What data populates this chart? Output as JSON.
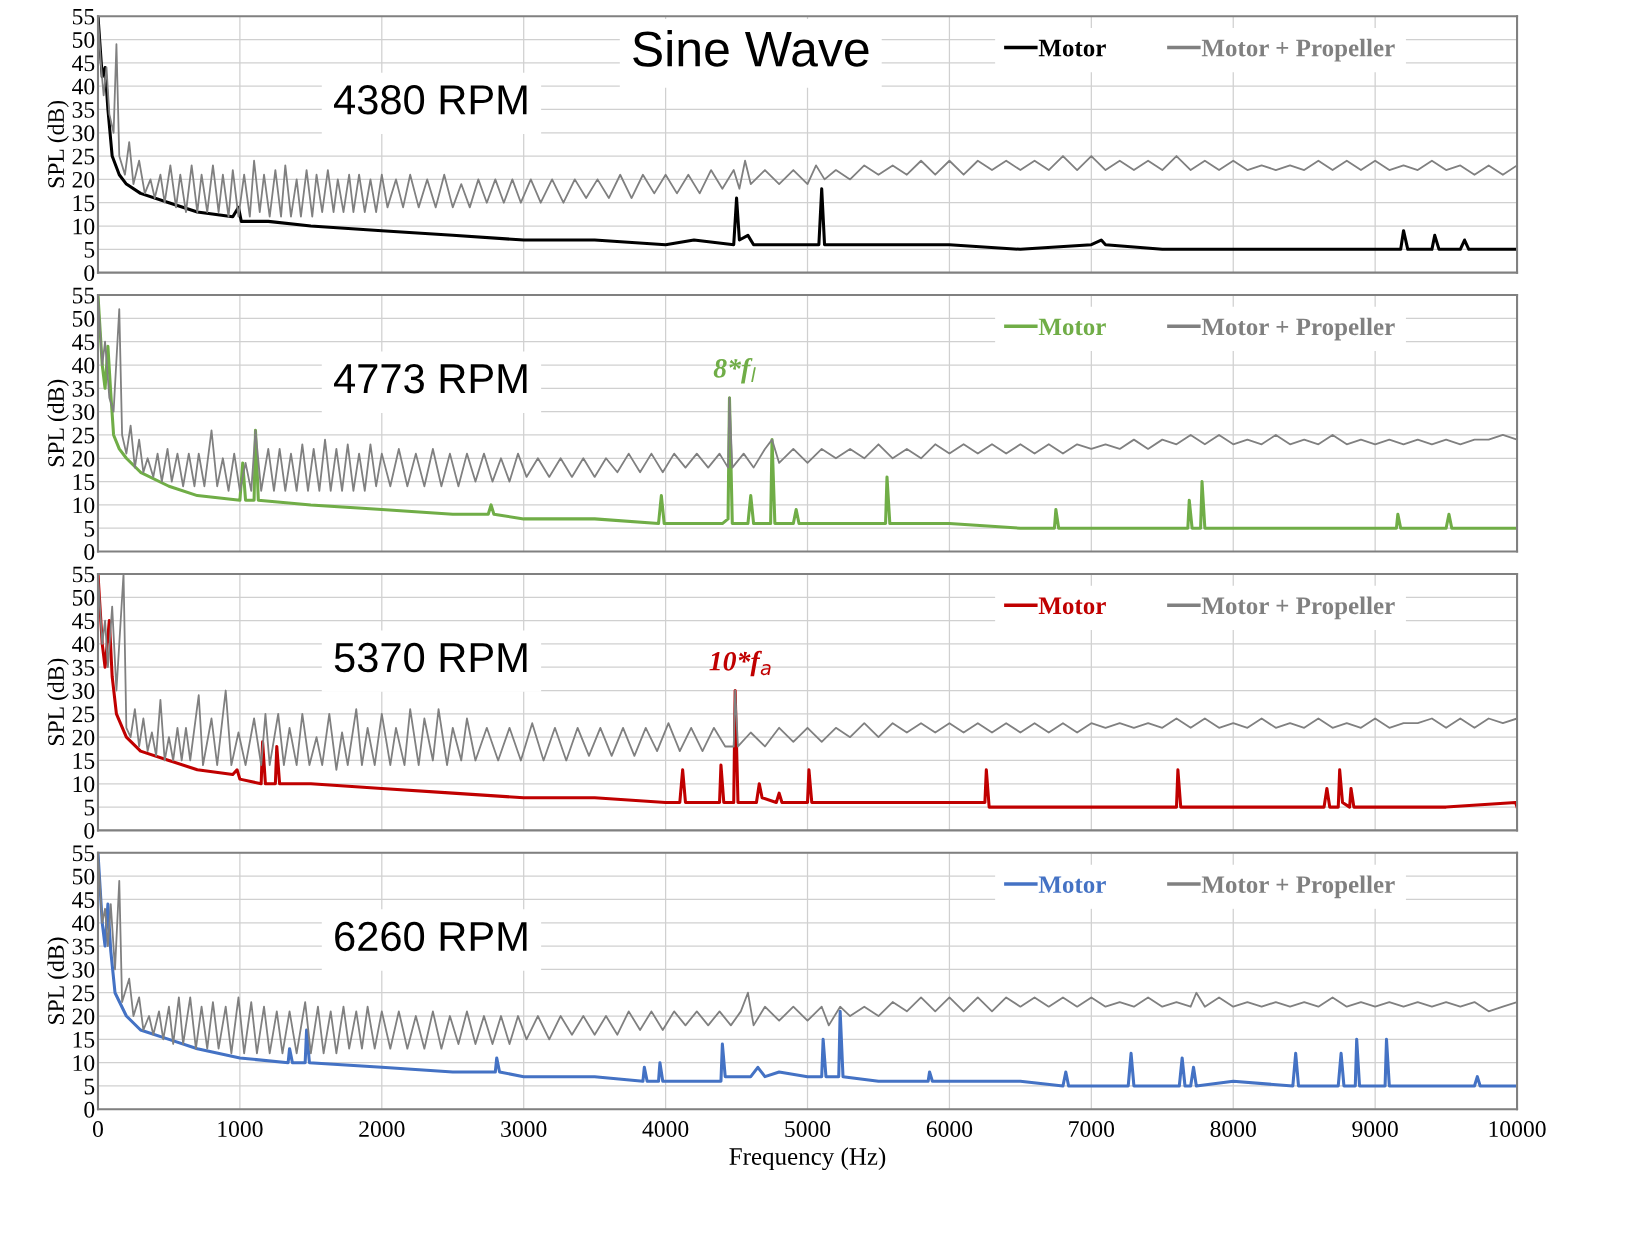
{
  "chart_data": [
    {
      "type": "line",
      "title": "Sine Wave",
      "ylabel": "SPL (dB)",
      "annotations": [
        "4380 RPM"
      ],
      "xlim": [
        0,
        10000
      ],
      "xticks": [
        0,
        1000,
        2000,
        3000,
        4000,
        5000,
        6000,
        7000,
        8000,
        9000,
        10000
      ],
      "ylim": [
        0,
        55
      ],
      "yticks": [
        0,
        5,
        10,
        15,
        20,
        25,
        30,
        35,
        40,
        45,
        50,
        55
      ],
      "tick_labels": "y",
      "grid": true,
      "legend": "top right",
      "series": [
        {
          "name": "Motor",
          "color": "#000000",
          "x": [
            0,
            30,
            50,
            70,
            100,
            150,
            200,
            300,
            500,
            700,
            950,
            990,
            1010,
            1200,
            1500,
            2000,
            2500,
            3000,
            3500,
            4000,
            4200,
            4480,
            4500,
            4520,
            4580,
            4620,
            5000,
            5080,
            5100,
            5120,
            5500,
            6000,
            6500,
            7000,
            7070,
            7100,
            7500,
            8000,
            8500,
            9000,
            9180,
            9200,
            9230,
            9400,
            9420,
            9450,
            9600,
            9630,
            9660,
            10000
          ],
          "values": [
            55,
            42,
            44,
            35,
            25,
            21,
            19,
            17,
            15,
            13,
            12,
            14,
            11,
            11,
            10,
            9,
            8,
            7,
            7,
            6,
            7,
            6,
            16,
            7,
            8,
            6,
            6,
            6,
            18,
            6,
            6,
            6,
            5,
            6,
            7,
            6,
            5,
            5,
            5,
            5,
            5,
            9,
            5,
            5,
            8,
            5,
            5,
            7,
            5,
            5
          ]
        },
        {
          "name": "Motor + Propeller",
          "color": "#808080",
          "x": [
            0,
            20,
            40,
            60,
            80,
            110,
            130,
            150,
            190,
            220,
            250,
            290,
            330,
            370,
            400,
            440,
            470,
            510,
            550,
            580,
            620,
            660,
            700,
            730,
            770,
            810,
            850,
            880,
            920,
            950,
            990,
            1030,
            1070,
            1100,
            1140,
            1170,
            1210,
            1250,
            1290,
            1320,
            1360,
            1400,
            1430,
            1470,
            1510,
            1540,
            1580,
            1620,
            1660,
            1690,
            1730,
            1770,
            1800,
            1840,
            1880,
            1920,
            1960,
            2000,
            2040,
            2100,
            2150,
            2200,
            2260,
            2320,
            2380,
            2440,
            2500,
            2560,
            2620,
            2680,
            2740,
            2800,
            2860,
            2920,
            2980,
            3050,
            3120,
            3200,
            3280,
            3360,
            3440,
            3520,
            3600,
            3680,
            3760,
            3840,
            3920,
            4000,
            4080,
            4160,
            4240,
            4320,
            4400,
            4480,
            4520,
            4560,
            4600,
            4700,
            4800,
            4900,
            5000,
            5060,
            5120,
            5200,
            5300,
            5400,
            5500,
            5600,
            5700,
            5800,
            5900,
            6000,
            6100,
            6200,
            6300,
            6400,
            6500,
            6600,
            6700,
            6800,
            6900,
            7000,
            7100,
            7200,
            7300,
            7400,
            7500,
            7600,
            7700,
            7800,
            7900,
            8000,
            8100,
            8200,
            8300,
            8400,
            8500,
            8600,
            8700,
            8800,
            8900,
            9000,
            9100,
            9200,
            9300,
            9400,
            9500,
            9600,
            9700,
            9800,
            9900,
            10000
          ],
          "values": [
            55,
            45,
            38,
            44,
            34,
            30,
            49,
            25,
            21,
            28,
            19,
            24,
            17,
            20,
            16,
            21,
            15,
            23,
            14,
            21,
            13,
            23,
            13,
            21,
            13,
            23,
            13,
            21,
            12,
            22,
            12,
            21,
            12,
            24,
            13,
            21,
            12,
            22,
            12,
            23,
            12,
            20,
            12,
            22,
            12,
            21,
            13,
            22,
            13,
            20,
            13,
            21,
            13,
            21,
            13,
            20,
            13,
            21,
            14,
            20,
            14,
            21,
            14,
            20,
            14,
            21,
            14,
            19,
            14,
            20,
            15,
            20,
            15,
            20,
            15,
            20,
            15,
            20,
            15,
            20,
            16,
            20,
            16,
            21,
            16,
            21,
            17,
            21,
            17,
            21,
            17,
            22,
            18,
            22,
            18,
            24,
            19,
            22,
            19,
            22,
            19,
            23,
            20,
            22,
            20,
            23,
            21,
            23,
            21,
            24,
            21,
            24,
            21,
            24,
            22,
            24,
            22,
            24,
            22,
            25,
            22,
            25,
            22,
            24,
            22,
            24,
            22,
            25,
            22,
            24,
            22,
            24,
            22,
            23,
            22,
            23,
            22,
            24,
            22,
            24,
            22,
            24,
            22,
            23,
            22,
            24,
            22,
            23,
            21,
            23,
            21,
            23
          ]
        }
      ]
    },
    {
      "type": "line",
      "ylabel": "SPL (dB)",
      "annotations": [
        "4773 RPM",
        {
          "text": "8*f$_{l}$",
          "x": 4450,
          "y": 33
        }
      ],
      "xlim": [
        0,
        10000
      ],
      "xticks": [
        0,
        1000,
        2000,
        3000,
        4000,
        5000,
        6000,
        7000,
        8000,
        9000,
        10000
      ],
      "ylim": [
        0,
        55
      ],
      "yticks": [
        0,
        5,
        10,
        15,
        20,
        25,
        30,
        35,
        40,
        45,
        50,
        55
      ],
      "tick_labels": "y",
      "grid": true,
      "legend": "top right",
      "series": [
        {
          "name": "Motor",
          "color": "#70ad47",
          "x": [
            0,
            30,
            50,
            70,
            90,
            110,
            150,
            200,
            300,
            500,
            700,
            1000,
            1020,
            1040,
            1100,
            1110,
            1130,
            1500,
            2000,
            2500,
            2750,
            2770,
            2790,
            3000,
            3500,
            3950,
            3970,
            3990,
            4400,
            4440,
            4450,
            4470,
            4580,
            4600,
            4620,
            4740,
            4750,
            4770,
            4900,
            4920,
            4940,
            5300,
            5550,
            5560,
            5580,
            6000,
            6500,
            6740,
            6750,
            6770,
            7000,
            7500,
            7680,
            7690,
            7710,
            7770,
            7780,
            7800,
            8000,
            8500,
            9000,
            9150,
            9160,
            9180,
            9500,
            9520,
            9540,
            10000
          ],
          "values": [
            55,
            40,
            35,
            44,
            34,
            25,
            22,
            20,
            17,
            14,
            12,
            11,
            19,
            11,
            11,
            26,
            11,
            10,
            9,
            8,
            8,
            10,
            8,
            7,
            7,
            6,
            12,
            6,
            6,
            7,
            33,
            6,
            6,
            12,
            6,
            6,
            24,
            6,
            6,
            9,
            6,
            6,
            6,
            16,
            6,
            6,
            5,
            5,
            9,
            5,
            5,
            5,
            5,
            11,
            5,
            5,
            15,
            5,
            5,
            5,
            5,
            5,
            8,
            5,
            5,
            8,
            5,
            5
          ]
        },
        {
          "name": "Motor + Propeller",
          "color": "#808080",
          "x": [
            0,
            30,
            50,
            80,
            110,
            150,
            170,
            200,
            230,
            260,
            290,
            320,
            350,
            390,
            420,
            450,
            490,
            520,
            560,
            600,
            640,
            680,
            710,
            750,
            800,
            840,
            880,
            920,
            960,
            1000,
            1040,
            1080,
            1110,
            1150,
            1200,
            1240,
            1280,
            1320,
            1360,
            1400,
            1440,
            1480,
            1520,
            1560,
            1600,
            1640,
            1680,
            1720,
            1760,
            1800,
            1840,
            1880,
            1920,
            1960,
            2000,
            2060,
            2120,
            2180,
            2240,
            2300,
            2360,
            2420,
            2480,
            2540,
            2600,
            2660,
            2720,
            2780,
            2840,
            2900,
            2960,
            3020,
            3100,
            3180,
            3260,
            3340,
            3420,
            3500,
            3580,
            3660,
            3740,
            3820,
            3900,
            3980,
            4060,
            4140,
            4220,
            4300,
            4380,
            4440,
            4450,
            4470,
            4550,
            4620,
            4700,
            4750,
            4800,
            4900,
            5000,
            5100,
            5200,
            5300,
            5400,
            5500,
            5600,
            5700,
            5800,
            5900,
            6000,
            6100,
            6200,
            6300,
            6400,
            6500,
            6600,
            6700,
            6800,
            6900,
            7000,
            7100,
            7200,
            7300,
            7400,
            7500,
            7600,
            7700,
            7800,
            7900,
            8000,
            8100,
            8200,
            8300,
            8400,
            8500,
            8600,
            8700,
            8800,
            8900,
            9000,
            9100,
            9200,
            9300,
            9400,
            9500,
            9600,
            9700,
            9800,
            9900,
            10000
          ],
          "values": [
            55,
            40,
            45,
            33,
            30,
            52,
            25,
            21,
            27,
            18,
            24,
            17,
            20,
            16,
            21,
            15,
            22,
            15,
            21,
            14,
            21,
            14,
            21,
            14,
            26,
            14,
            20,
            13,
            21,
            13,
            19,
            13,
            26,
            13,
            22,
            13,
            22,
            13,
            21,
            13,
            23,
            13,
            22,
            13,
            24,
            13,
            22,
            13,
            23,
            13,
            21,
            13,
            23,
            14,
            21,
            14,
            22,
            14,
            21,
            14,
            22,
            14,
            21,
            14,
            21,
            15,
            21,
            15,
            20,
            15,
            21,
            16,
            20,
            16,
            20,
            16,
            20,
            16,
            20,
            17,
            21,
            17,
            21,
            17,
            21,
            18,
            21,
            18,
            21,
            18,
            33,
            18,
            21,
            18,
            22,
            24,
            19,
            22,
            19,
            22,
            20,
            22,
            20,
            23,
            20,
            22,
            20,
            23,
            21,
            23,
            21,
            23,
            21,
            23,
            21,
            23,
            21,
            23,
            22,
            23,
            22,
            24,
            22,
            24,
            23,
            25,
            23,
            25,
            23,
            24,
            23,
            25,
            23,
            24,
            23,
            25,
            23,
            24,
            23,
            24,
            23,
            24,
            23,
            24,
            23,
            24,
            24,
            25,
            24
          ]
        }
      ]
    },
    {
      "type": "line",
      "ylabel": "SPL (dB)",
      "annotations": [
        "5370 RPM",
        {
          "text": "10*f$_{a}$",
          "x": 4490,
          "y": 30
        }
      ],
      "xlim": [
        0,
        10000
      ],
      "xticks": [
        0,
        1000,
        2000,
        3000,
        4000,
        5000,
        6000,
        7000,
        8000,
        9000,
        10000
      ],
      "ylim": [
        0,
        55
      ],
      "yticks": [
        0,
        5,
        10,
        15,
        20,
        25,
        30,
        35,
        40,
        45,
        50,
        55
      ],
      "tick_labels": "y",
      "grid": true,
      "legend": "top right",
      "series": [
        {
          "name": "Motor",
          "color": "#c00000",
          "x": [
            0,
            30,
            50,
            80,
            100,
            130,
            200,
            300,
            500,
            700,
            950,
            980,
            1000,
            1150,
            1160,
            1180,
            1250,
            1260,
            1280,
            1500,
            2000,
            2500,
            3000,
            3500,
            4000,
            4100,
            4120,
            4140,
            4380,
            4390,
            4410,
            4480,
            4490,
            4510,
            4640,
            4660,
            4680,
            4780,
            4800,
            4820,
            5000,
            5010,
            5030,
            5500,
            6000,
            6250,
            6260,
            6280,
            6500,
            7000,
            7500,
            7600,
            7610,
            7630,
            8000,
            8500,
            8640,
            8660,
            8680,
            8740,
            8750,
            8770,
            8820,
            8830,
            8850,
            9500,
            9990,
            10000
          ],
          "values": [
            55,
            40,
            35,
            45,
            33,
            25,
            20,
            17,
            15,
            13,
            12,
            13,
            11,
            10,
            19,
            10,
            10,
            18,
            10,
            10,
            9,
            8,
            7,
            7,
            6,
            6,
            13,
            6,
            6,
            14,
            6,
            6,
            30,
            6,
            6,
            10,
            7,
            6,
            8,
            6,
            6,
            13,
            6,
            6,
            6,
            6,
            13,
            5,
            5,
            5,
            5,
            5,
            13,
            5,
            5,
            5,
            5,
            9,
            5,
            5,
            13,
            6,
            5,
            9,
            5,
            5,
            6,
            5
          ]
        },
        {
          "name": "Motor + Propeller",
          "color": "#808080",
          "x": [
            0,
            30,
            50,
            70,
            100,
            130,
            180,
            200,
            230,
            260,
            290,
            320,
            350,
            380,
            410,
            440,
            470,
            500,
            530,
            560,
            590,
            620,
            650,
            710,
            740,
            800,
            840,
            900,
            940,
            990,
            1040,
            1100,
            1150,
            1180,
            1210,
            1270,
            1310,
            1350,
            1400,
            1440,
            1490,
            1540,
            1580,
            1630,
            1680,
            1720,
            1760,
            1820,
            1860,
            1900,
            1950,
            2000,
            2060,
            2100,
            2160,
            2200,
            2260,
            2300,
            2360,
            2400,
            2460,
            2500,
            2560,
            2600,
            2660,
            2740,
            2820,
            2900,
            2980,
            3060,
            3140,
            3220,
            3300,
            3380,
            3460,
            3540,
            3620,
            3700,
            3780,
            3860,
            3940,
            4020,
            4100,
            4180,
            4260,
            4340,
            4420,
            4480,
            4490,
            4510,
            4600,
            4700,
            4800,
            4900,
            5000,
            5100,
            5200,
            5300,
            5400,
            5500,
            5600,
            5700,
            5800,
            5900,
            6000,
            6100,
            6200,
            6300,
            6400,
            6500,
            6600,
            6700,
            6800,
            6900,
            7000,
            7100,
            7200,
            7300,
            7400,
            7500,
            7600,
            7700,
            7800,
            7900,
            8000,
            8100,
            8200,
            8300,
            8400,
            8500,
            8600,
            8700,
            8800,
            8900,
            9000,
            9100,
            9200,
            9300,
            9400,
            9500,
            9600,
            9700,
            9800,
            9900,
            10000
          ],
          "values": [
            55,
            40,
            45,
            35,
            48,
            30,
            55,
            22,
            20,
            26,
            18,
            24,
            17,
            21,
            16,
            28,
            15,
            20,
            15,
            22,
            15,
            22,
            15,
            29,
            14,
            24,
            14,
            30,
            14,
            21,
            14,
            24,
            14,
            25,
            14,
            25,
            14,
            22,
            14,
            25,
            14,
            20,
            14,
            25,
            13,
            21,
            14,
            26,
            14,
            22,
            14,
            25,
            14,
            22,
            14,
            26,
            14,
            24,
            15,
            26,
            14,
            22,
            15,
            24,
            15,
            22,
            15,
            22,
            15,
            23,
            15,
            22,
            15,
            22,
            16,
            22,
            16,
            22,
            16,
            22,
            17,
            23,
            17,
            22,
            17,
            22,
            18,
            18,
            30,
            18,
            21,
            18,
            22,
            19,
            22,
            19,
            22,
            20,
            23,
            20,
            23,
            21,
            23,
            21,
            23,
            21,
            23,
            21,
            23,
            21,
            23,
            21,
            23,
            21,
            23,
            22,
            23,
            22,
            23,
            22,
            24,
            22,
            24,
            22,
            23,
            22,
            24,
            22,
            23,
            22,
            24,
            22,
            23,
            22,
            24,
            22,
            23,
            23,
            24,
            22,
            24,
            22,
            24,
            23,
            24
          ]
        }
      ]
    },
    {
      "type": "line",
      "xlabel": "Frequency (Hz)",
      "ylabel": "SPL (dB)",
      "annotations": [
        "6260 RPM"
      ],
      "xlim": [
        0,
        10000
      ],
      "xticks": [
        0,
        1000,
        2000,
        3000,
        4000,
        5000,
        6000,
        7000,
        8000,
        9000,
        10000
      ],
      "ylim": [
        0,
        55
      ],
      "yticks": [
        0,
        5,
        10,
        15,
        20,
        25,
        30,
        35,
        40,
        45,
        50,
        55
      ],
      "grid": true,
      "legend": "top right",
      "series": [
        {
          "name": "Motor",
          "color": "#4472c4",
          "x": [
            0,
            30,
            50,
            70,
            90,
            120,
            200,
            300,
            500,
            700,
            1000,
            1340,
            1350,
            1370,
            1460,
            1470,
            1490,
            2000,
            2500,
            2800,
            2810,
            2830,
            3000,
            3500,
            3840,
            3850,
            3870,
            3950,
            3960,
            3980,
            4390,
            4400,
            4420,
            4600,
            4650,
            4700,
            4800,
            5000,
            5100,
            5110,
            5130,
            5220,
            5230,
            5250,
            5500,
            5850,
            5860,
            5880,
            6500,
            6800,
            6820,
            6840,
            7260,
            7280,
            7300,
            7620,
            7640,
            7660,
            7700,
            7720,
            7740,
            8000,
            8420,
            8440,
            8460,
            8740,
            8760,
            8780,
            8860,
            8870,
            8890,
            9070,
            9080,
            9100,
            9500,
            9700,
            9720,
            9740,
            10000
          ],
          "values": [
            55,
            40,
            35,
            44,
            34,
            25,
            20,
            17,
            15,
            13,
            11,
            10,
            13,
            10,
            10,
            17,
            10,
            9,
            8,
            8,
            11,
            8,
            7,
            7,
            6,
            9,
            6,
            6,
            10,
            6,
            6,
            14,
            7,
            7,
            9,
            7,
            8,
            7,
            7,
            15,
            7,
            7,
            21,
            7,
            6,
            6,
            8,
            6,
            6,
            5,
            8,
            5,
            5,
            12,
            5,
            5,
            11,
            5,
            5,
            9,
            5,
            6,
            5,
            12,
            5,
            5,
            12,
            5,
            5,
            15,
            5,
            5,
            15,
            5,
            5,
            5,
            7,
            5,
            5
          ]
        },
        {
          "name": "Motor + Propeller",
          "color": "#808080",
          "x": [
            0,
            30,
            50,
            70,
            90,
            120,
            150,
            170,
            220,
            250,
            290,
            320,
            360,
            390,
            430,
            460,
            500,
            530,
            570,
            600,
            650,
            690,
            730,
            770,
            810,
            850,
            900,
            940,
            990,
            1030,
            1080,
            1120,
            1170,
            1210,
            1260,
            1300,
            1350,
            1400,
            1460,
            1500,
            1550,
            1590,
            1640,
            1680,
            1730,
            1770,
            1820,
            1860,
            1900,
            1950,
            2000,
            2060,
            2120,
            2180,
            2240,
            2300,
            2360,
            2420,
            2480,
            2540,
            2600,
            2660,
            2720,
            2780,
            2840,
            2900,
            2960,
            3020,
            3100,
            3180,
            3260,
            3340,
            3420,
            3500,
            3580,
            3660,
            3740,
            3820,
            3900,
            3980,
            4060,
            4140,
            4220,
            4300,
            4380,
            4460,
            4530,
            4580,
            4620,
            4700,
            4800,
            4900,
            5000,
            5100,
            5150,
            5230,
            5300,
            5400,
            5500,
            5600,
            5700,
            5800,
            5900,
            6000,
            6100,
            6200,
            6300,
            6400,
            6500,
            6600,
            6700,
            6800,
            6900,
            7000,
            7100,
            7200,
            7300,
            7400,
            7500,
            7600,
            7700,
            7740,
            7800,
            7900,
            8000,
            8100,
            8200,
            8300,
            8400,
            8500,
            8600,
            8700,
            8800,
            8900,
            9000,
            9100,
            9200,
            9300,
            9400,
            9500,
            9600,
            9700,
            9800,
            9900,
            10000
          ],
          "values": [
            55,
            40,
            43,
            35,
            44,
            30,
            49,
            23,
            28,
            20,
            24,
            17,
            20,
            16,
            21,
            15,
            22,
            14,
            24,
            14,
            24,
            13,
            22,
            13,
            23,
            13,
            22,
            12,
            24,
            12,
            23,
            12,
            22,
            12,
            21,
            12,
            21,
            12,
            23,
            12,
            22,
            12,
            21,
            12,
            22,
            13,
            21,
            13,
            22,
            13,
            21,
            13,
            21,
            13,
            20,
            13,
            21,
            13,
            20,
            14,
            21,
            14,
            20,
            14,
            20,
            14,
            20,
            15,
            20,
            15,
            20,
            16,
            20,
            16,
            20,
            16,
            21,
            17,
            21,
            17,
            21,
            18,
            21,
            18,
            21,
            18,
            21,
            25,
            18,
            22,
            19,
            22,
            19,
            22,
            18,
            22,
            20,
            22,
            20,
            23,
            21,
            24,
            21,
            24,
            21,
            24,
            21,
            24,
            22,
            24,
            22,
            24,
            22,
            24,
            22,
            23,
            22,
            24,
            22,
            23,
            22,
            25,
            22,
            24,
            22,
            23,
            22,
            23,
            22,
            23,
            22,
            24,
            22,
            23,
            22,
            23,
            22,
            23,
            22,
            23,
            22,
            23,
            21,
            22,
            23
          ]
        }
      ]
    }
  ]
}
